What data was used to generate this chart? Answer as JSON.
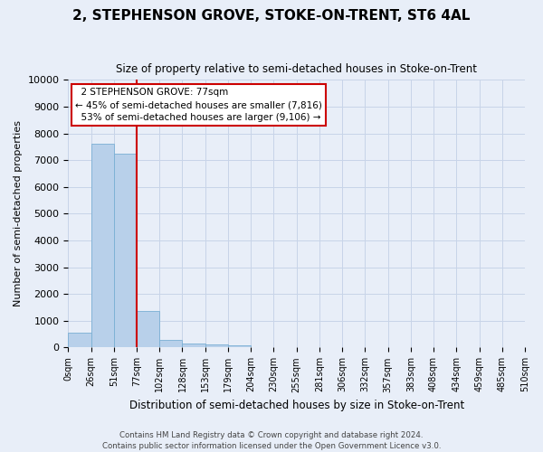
{
  "title": "2, STEPHENSON GROVE, STOKE-ON-TRENT, ST6 4AL",
  "subtitle": "Size of property relative to semi-detached houses in Stoke-on-Trent",
  "xlabel": "Distribution of semi-detached houses by size in Stoke-on-Trent",
  "ylabel": "Number of semi-detached properties",
  "bar_values": [
    550,
    7600,
    7250,
    1350,
    300,
    150,
    100,
    75,
    0,
    0,
    0,
    0,
    0,
    0,
    0,
    0,
    0,
    0,
    0,
    0
  ],
  "bar_color": "#b8d0ea",
  "bar_edge_color": "#7aafd4",
  "x_labels": [
    "0sqm",
    "26sqm",
    "51sqm",
    "77sqm",
    "102sqm",
    "128sqm",
    "153sqm",
    "179sqm",
    "204sqm",
    "230sqm",
    "255sqm",
    "281sqm",
    "306sqm",
    "332sqm",
    "357sqm",
    "383sqm",
    "408sqm",
    "434sqm",
    "459sqm",
    "485sqm",
    "510sqm"
  ],
  "ylim": [
    0,
    10000
  ],
  "yticks": [
    0,
    1000,
    2000,
    3000,
    4000,
    5000,
    6000,
    7000,
    8000,
    9000,
    10000
  ],
  "property_label": "2 STEPHENSON GROVE: 77sqm",
  "pct_smaller": 45,
  "pct_larger": 53,
  "count_smaller": 7816,
  "count_larger": 9106,
  "annotation_box_color": "#ffffff",
  "annotation_box_edge": "#cc0000",
  "vline_color": "#cc0000",
  "vline_x_index": 3,
  "grid_color": "#c8d4e8",
  "background_color": "#e8eef8",
  "footer1": "Contains HM Land Registry data © Crown copyright and database right 2024.",
  "footer2": "Contains public sector information licensed under the Open Government Licence v3.0."
}
